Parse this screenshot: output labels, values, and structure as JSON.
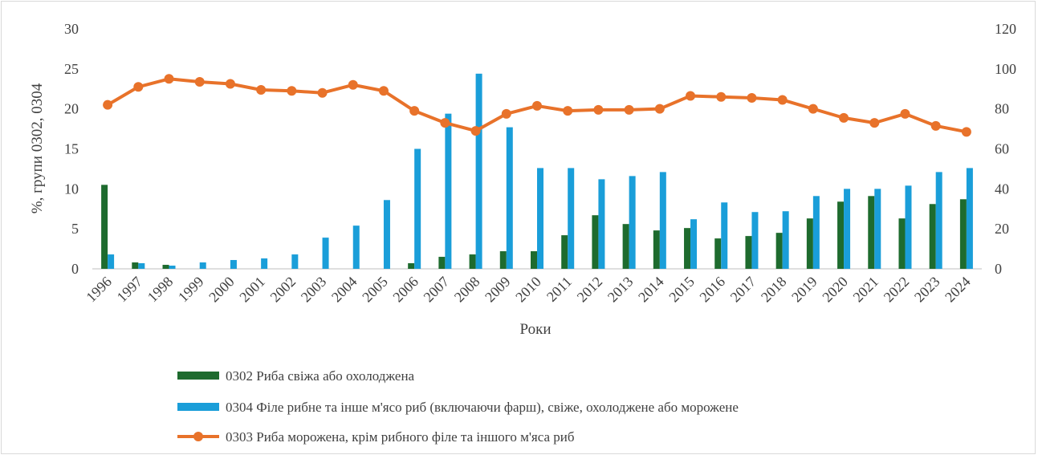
{
  "chart_data": {
    "type": "bar",
    "title": "",
    "xlabel": "Роки",
    "ylabel": "%, групи 0302, 0304",
    "ylim": [
      0,
      30
    ],
    "y_ticks": [
      "0",
      "5",
      "10",
      "15",
      "20",
      "25",
      "30"
    ],
    "y2lim": [
      0,
      120
    ],
    "y2_ticks": [
      "0",
      "20",
      "40",
      "60",
      "80",
      "100",
      "120"
    ],
    "grid": false,
    "legend_position": "bottom",
    "categories": [
      "1996",
      "1997",
      "1998",
      "1999",
      "2000",
      "2001",
      "2002",
      "2003",
      "2004",
      "2005",
      "2006",
      "2007",
      "2008",
      "2009",
      "2010",
      "2011",
      "2012",
      "2013",
      "2014",
      "2015",
      "2016",
      "2017",
      "2018",
      "2019",
      "2020",
      "2021",
      "2022",
      "2023",
      "2024"
    ],
    "series": [
      {
        "name": "0302 Риба свіжа або охолоджена",
        "type": "bar",
        "axis": "left",
        "color": "#1e6b2e",
        "values": [
          10.5,
          0.8,
          0.5,
          0,
          0,
          0,
          0,
          0,
          0,
          0,
          0.7,
          1.5,
          1.8,
          2.2,
          2.2,
          4.2,
          6.7,
          5.6,
          4.8,
          5.1,
          3.8,
          4.1,
          4.5,
          6.3,
          8.4,
          9.1,
          6.3,
          8.1,
          8.7
        ]
      },
      {
        "name": "0304 Філе рибне та інше м'ясо риб (включаючи фарш), свіже, охолоджене або морожене",
        "type": "bar",
        "axis": "left",
        "color": "#1a9ed9",
        "values": [
          1.8,
          0.7,
          0.4,
          0.8,
          1.1,
          1.3,
          1.8,
          3.9,
          5.4,
          8.6,
          15.0,
          19.4,
          24.4,
          17.7,
          12.6,
          12.6,
          11.2,
          11.6,
          12.1,
          6.2,
          8.3,
          7.1,
          7.2,
          9.1,
          10.0,
          10.0,
          10.4,
          12.1,
          12.6
        ]
      },
      {
        "name": "0303 Риба морожена, крім рибного філе та іншого м'яса риб",
        "type": "line",
        "axis": "right",
        "color": "#e8722a",
        "values": [
          82,
          91,
          95,
          93.5,
          92.5,
          89.5,
          89,
          88,
          92,
          89,
          79,
          73,
          69,
          77.5,
          81.5,
          79,
          79.5,
          79.5,
          80,
          86.5,
          86,
          85.5,
          84.5,
          80,
          75.5,
          73,
          77.5,
          71.5,
          68.5
        ]
      }
    ]
  }
}
